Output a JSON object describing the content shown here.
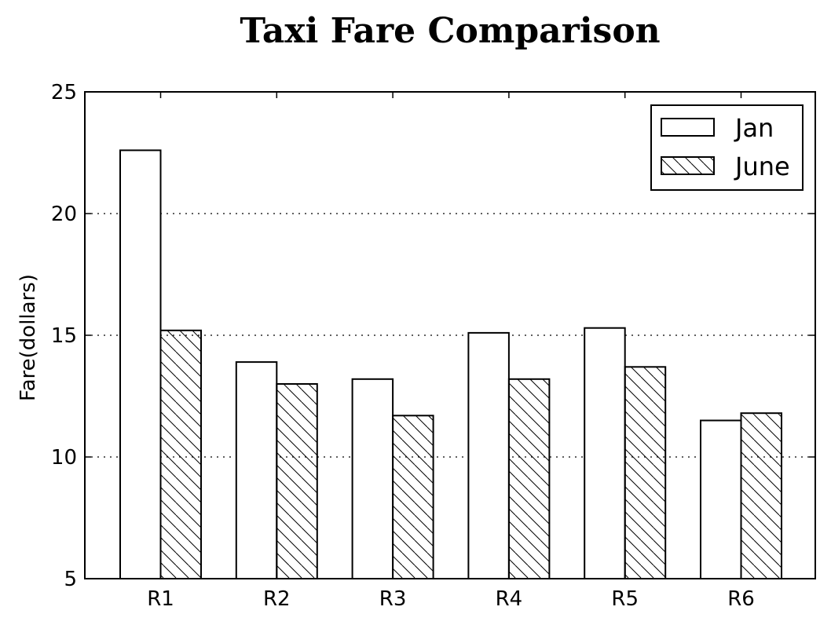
{
  "chart_data": {
    "type": "bar",
    "title": "Taxi Fare Comparison",
    "xlabel": "",
    "ylabel": "Fare(dollars)",
    "categories": [
      "R1",
      "R2",
      "R3",
      "R4",
      "R5",
      "R6"
    ],
    "series": [
      {
        "name": "Jan",
        "values": [
          22.6,
          13.9,
          13.2,
          15.1,
          15.3,
          11.5
        ],
        "hatch": "none"
      },
      {
        "name": "June",
        "values": [
          15.2,
          13.0,
          11.7,
          13.2,
          13.7,
          11.8
        ],
        "hatch": "backslash"
      }
    ],
    "ylim": [
      5,
      25
    ],
    "yticks": [
      5,
      10,
      15,
      20,
      25
    ],
    "grid": "y-dotted",
    "legend_position": "top-right",
    "colors": {
      "bar_fill": "#ffffff",
      "stroke": "#000000",
      "grid": "#000000"
    }
  }
}
